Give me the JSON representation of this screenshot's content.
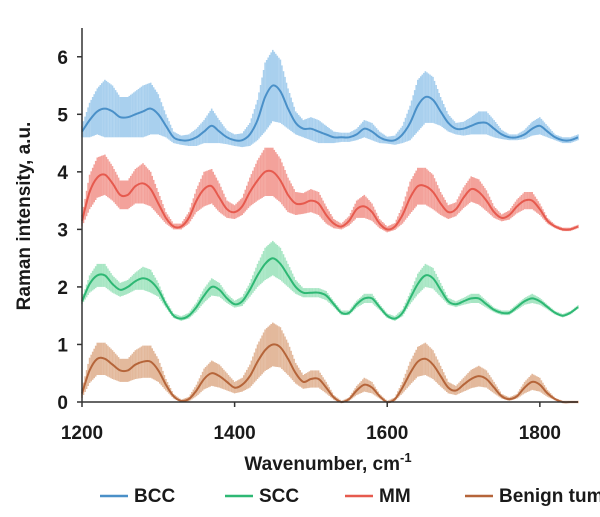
{
  "chart_data": {
    "type": "line",
    "xlabel": "Wavenumber, cm",
    "xlabel_sup": "-1",
    "ylabel": "Raman intensity, a.u.",
    "xlim": [
      1200,
      1850
    ],
    "ylim": [
      0,
      6.5
    ],
    "xticks": [
      "1200",
      "1400",
      "1600",
      "1800"
    ],
    "yticks": [
      "0",
      "1",
      "2",
      "3",
      "4",
      "5",
      "6"
    ],
    "grid": false,
    "legend_position": "bottom",
    "series": [
      {
        "name": "BCC",
        "color": "#4a90c8",
        "band_color": "#a9d0ee",
        "x": [
          1200,
          1210,
          1220,
          1230,
          1240,
          1250,
          1260,
          1270,
          1280,
          1290,
          1300,
          1310,
          1320,
          1330,
          1340,
          1350,
          1360,
          1370,
          1380,
          1390,
          1400,
          1410,
          1420,
          1430,
          1440,
          1450,
          1460,
          1470,
          1480,
          1490,
          1500,
          1510,
          1520,
          1530,
          1540,
          1550,
          1560,
          1570,
          1580,
          1590,
          1600,
          1610,
          1620,
          1630,
          1640,
          1650,
          1660,
          1670,
          1680,
          1690,
          1700,
          1710,
          1720,
          1730,
          1740,
          1750,
          1760,
          1770,
          1780,
          1790,
          1800,
          1810,
          1820,
          1830,
          1840,
          1850
        ],
        "y": [
          4.7,
          4.9,
          5.05,
          5.1,
          5.05,
          4.95,
          4.95,
          5.0,
          5.05,
          5.1,
          5.0,
          4.8,
          4.6,
          4.55,
          4.55,
          4.6,
          4.7,
          4.8,
          4.7,
          4.6,
          4.55,
          4.55,
          4.65,
          4.9,
          5.3,
          5.5,
          5.4,
          5.1,
          4.85,
          4.75,
          4.75,
          4.7,
          4.65,
          4.6,
          4.6,
          4.6,
          4.65,
          4.75,
          4.7,
          4.6,
          4.55,
          4.55,
          4.65,
          4.85,
          5.15,
          5.3,
          5.25,
          5.05,
          4.85,
          4.75,
          4.75,
          4.8,
          4.85,
          4.85,
          4.75,
          4.65,
          4.6,
          4.6,
          4.65,
          4.75,
          4.8,
          4.7,
          4.6,
          4.55,
          4.55,
          4.6
        ],
        "sd": [
          0.1,
          0.3,
          0.4,
          0.5,
          0.45,
          0.35,
          0.35,
          0.4,
          0.45,
          0.45,
          0.35,
          0.2,
          0.1,
          0.08,
          0.1,
          0.15,
          0.2,
          0.3,
          0.2,
          0.12,
          0.1,
          0.12,
          0.2,
          0.35,
          0.6,
          0.62,
          0.55,
          0.35,
          0.2,
          0.15,
          0.2,
          0.2,
          0.15,
          0.1,
          0.08,
          0.08,
          0.1,
          0.15,
          0.15,
          0.1,
          0.06,
          0.08,
          0.15,
          0.3,
          0.45,
          0.45,
          0.4,
          0.25,
          0.15,
          0.1,
          0.12,
          0.15,
          0.2,
          0.2,
          0.15,
          0.08,
          0.05,
          0.05,
          0.08,
          0.12,
          0.15,
          0.1,
          0.05,
          0.05,
          0.05,
          0.05
        ]
      },
      {
        "name": "SCC",
        "color": "#2eb874",
        "band_color": "#a8e6c4",
        "x": [
          1200,
          1210,
          1220,
          1230,
          1240,
          1250,
          1260,
          1270,
          1280,
          1290,
          1300,
          1310,
          1320,
          1330,
          1340,
          1350,
          1360,
          1370,
          1380,
          1390,
          1400,
          1410,
          1420,
          1430,
          1440,
          1450,
          1460,
          1470,
          1480,
          1490,
          1500,
          1510,
          1520,
          1530,
          1540,
          1550,
          1560,
          1570,
          1580,
          1590,
          1600,
          1610,
          1620,
          1630,
          1640,
          1650,
          1660,
          1670,
          1680,
          1690,
          1700,
          1710,
          1720,
          1730,
          1740,
          1750,
          1760,
          1770,
          1780,
          1790,
          1800,
          1810,
          1820,
          1830,
          1840,
          1850
        ],
        "y": [
          1.75,
          2.05,
          2.2,
          2.2,
          2.05,
          1.95,
          2.0,
          2.1,
          2.15,
          2.1,
          1.95,
          1.7,
          1.5,
          1.45,
          1.5,
          1.65,
          1.85,
          2.0,
          1.95,
          1.8,
          1.7,
          1.75,
          1.95,
          2.2,
          2.4,
          2.5,
          2.4,
          2.2,
          2.0,
          1.9,
          1.9,
          1.9,
          1.85,
          1.7,
          1.55,
          1.55,
          1.7,
          1.8,
          1.8,
          1.65,
          1.5,
          1.45,
          1.55,
          1.8,
          2.05,
          2.2,
          2.15,
          1.95,
          1.75,
          1.7,
          1.75,
          1.8,
          1.8,
          1.7,
          1.6,
          1.55,
          1.55,
          1.65,
          1.75,
          1.8,
          1.75,
          1.65,
          1.55,
          1.5,
          1.55,
          1.65
        ],
        "sd": [
          0.05,
          0.15,
          0.2,
          0.2,
          0.15,
          0.12,
          0.12,
          0.15,
          0.2,
          0.2,
          0.12,
          0.06,
          0.04,
          0.04,
          0.05,
          0.08,
          0.12,
          0.15,
          0.12,
          0.08,
          0.06,
          0.08,
          0.12,
          0.2,
          0.28,
          0.3,
          0.28,
          0.2,
          0.12,
          0.08,
          0.08,
          0.08,
          0.08,
          0.05,
          0.04,
          0.04,
          0.06,
          0.08,
          0.08,
          0.05,
          0.04,
          0.04,
          0.06,
          0.1,
          0.18,
          0.2,
          0.18,
          0.12,
          0.06,
          0.05,
          0.06,
          0.08,
          0.08,
          0.06,
          0.04,
          0.04,
          0.04,
          0.05,
          0.06,
          0.08,
          0.06,
          0.04,
          0.03,
          0.03,
          0.03,
          0.03
        ]
      },
      {
        "name": "MM",
        "color": "#e65a4e",
        "band_color": "#f3a29b",
        "x": [
          1200,
          1210,
          1220,
          1230,
          1240,
          1250,
          1260,
          1270,
          1280,
          1290,
          1300,
          1310,
          1320,
          1330,
          1340,
          1350,
          1360,
          1370,
          1380,
          1390,
          1400,
          1410,
          1420,
          1430,
          1440,
          1450,
          1460,
          1470,
          1480,
          1490,
          1500,
          1510,
          1520,
          1530,
          1540,
          1550,
          1560,
          1570,
          1580,
          1590,
          1600,
          1610,
          1620,
          1630,
          1640,
          1650,
          1660,
          1670,
          1680,
          1690,
          1700,
          1710,
          1720,
          1730,
          1740,
          1750,
          1760,
          1770,
          1780,
          1790,
          1800,
          1810,
          1820,
          1830,
          1840,
          1850
        ],
        "y": [
          3.15,
          3.65,
          3.9,
          3.95,
          3.8,
          3.6,
          3.6,
          3.75,
          3.8,
          3.7,
          3.45,
          3.2,
          3.05,
          3.05,
          3.2,
          3.5,
          3.7,
          3.75,
          3.55,
          3.35,
          3.3,
          3.4,
          3.65,
          3.85,
          4.0,
          4.0,
          3.85,
          3.6,
          3.45,
          3.45,
          3.5,
          3.45,
          3.25,
          3.1,
          3.05,
          3.15,
          3.35,
          3.4,
          3.3,
          3.1,
          3.0,
          3.05,
          3.25,
          3.55,
          3.75,
          3.75,
          3.65,
          3.45,
          3.3,
          3.35,
          3.55,
          3.7,
          3.65,
          3.5,
          3.3,
          3.2,
          3.25,
          3.4,
          3.5,
          3.5,
          3.35,
          3.15,
          3.05,
          3.0,
          3.0,
          3.05
        ],
        "sd": [
          0.1,
          0.3,
          0.35,
          0.35,
          0.3,
          0.25,
          0.25,
          0.3,
          0.35,
          0.3,
          0.2,
          0.1,
          0.05,
          0.05,
          0.1,
          0.2,
          0.3,
          0.3,
          0.25,
          0.15,
          0.12,
          0.15,
          0.25,
          0.35,
          0.42,
          0.42,
          0.38,
          0.3,
          0.2,
          0.18,
          0.2,
          0.2,
          0.15,
          0.08,
          0.05,
          0.08,
          0.15,
          0.2,
          0.15,
          0.08,
          0.05,
          0.06,
          0.15,
          0.28,
          0.32,
          0.32,
          0.3,
          0.2,
          0.12,
          0.12,
          0.18,
          0.22,
          0.22,
          0.18,
          0.1,
          0.06,
          0.08,
          0.12,
          0.15,
          0.15,
          0.1,
          0.05,
          0.03,
          0.03,
          0.03,
          0.03
        ]
      },
      {
        "name": "Benign tumor",
        "color": "#b5653a",
        "band_color": "#e3b99c",
        "x": [
          1200,
          1210,
          1220,
          1230,
          1240,
          1250,
          1260,
          1270,
          1280,
          1290,
          1300,
          1310,
          1320,
          1330,
          1340,
          1350,
          1360,
          1370,
          1380,
          1390,
          1400,
          1410,
          1420,
          1430,
          1440,
          1450,
          1460,
          1470,
          1480,
          1490,
          1500,
          1510,
          1520,
          1530,
          1540,
          1550,
          1560,
          1570,
          1580,
          1590,
          1600,
          1610,
          1620,
          1630,
          1640,
          1650,
          1660,
          1670,
          1680,
          1690,
          1700,
          1710,
          1720,
          1730,
          1740,
          1750,
          1760,
          1770,
          1780,
          1790,
          1800,
          1810,
          1820,
          1830,
          1840,
          1850
        ],
        "y": [
          0.15,
          0.55,
          0.75,
          0.75,
          0.65,
          0.55,
          0.55,
          0.65,
          0.7,
          0.7,
          0.55,
          0.3,
          0.1,
          0.02,
          0.05,
          0.2,
          0.4,
          0.5,
          0.45,
          0.35,
          0.25,
          0.3,
          0.45,
          0.7,
          0.9,
          1.0,
          0.95,
          0.75,
          0.5,
          0.35,
          0.4,
          0.4,
          0.25,
          0.08,
          0.0,
          0.05,
          0.2,
          0.3,
          0.25,
          0.1,
          0.0,
          0.05,
          0.25,
          0.5,
          0.7,
          0.75,
          0.65,
          0.45,
          0.25,
          0.2,
          0.3,
          0.4,
          0.45,
          0.4,
          0.25,
          0.1,
          0.05,
          0.1,
          0.25,
          0.35,
          0.3,
          0.15,
          0.05,
          0.0,
          0.0,
          0.0
        ],
        "sd": [
          0.08,
          0.22,
          0.28,
          0.28,
          0.25,
          0.2,
          0.2,
          0.25,
          0.28,
          0.28,
          0.2,
          0.1,
          0.04,
          0.02,
          0.04,
          0.1,
          0.18,
          0.22,
          0.2,
          0.15,
          0.1,
          0.12,
          0.2,
          0.3,
          0.36,
          0.38,
          0.35,
          0.28,
          0.18,
          0.12,
          0.15,
          0.15,
          0.1,
          0.04,
          0.02,
          0.03,
          0.08,
          0.12,
          0.1,
          0.04,
          0.02,
          0.03,
          0.1,
          0.2,
          0.26,
          0.28,
          0.25,
          0.18,
          0.1,
          0.08,
          0.12,
          0.16,
          0.18,
          0.15,
          0.1,
          0.04,
          0.03,
          0.04,
          0.1,
          0.14,
          0.12,
          0.06,
          0.02,
          0.02,
          0.02,
          0.02
        ]
      }
    ]
  }
}
